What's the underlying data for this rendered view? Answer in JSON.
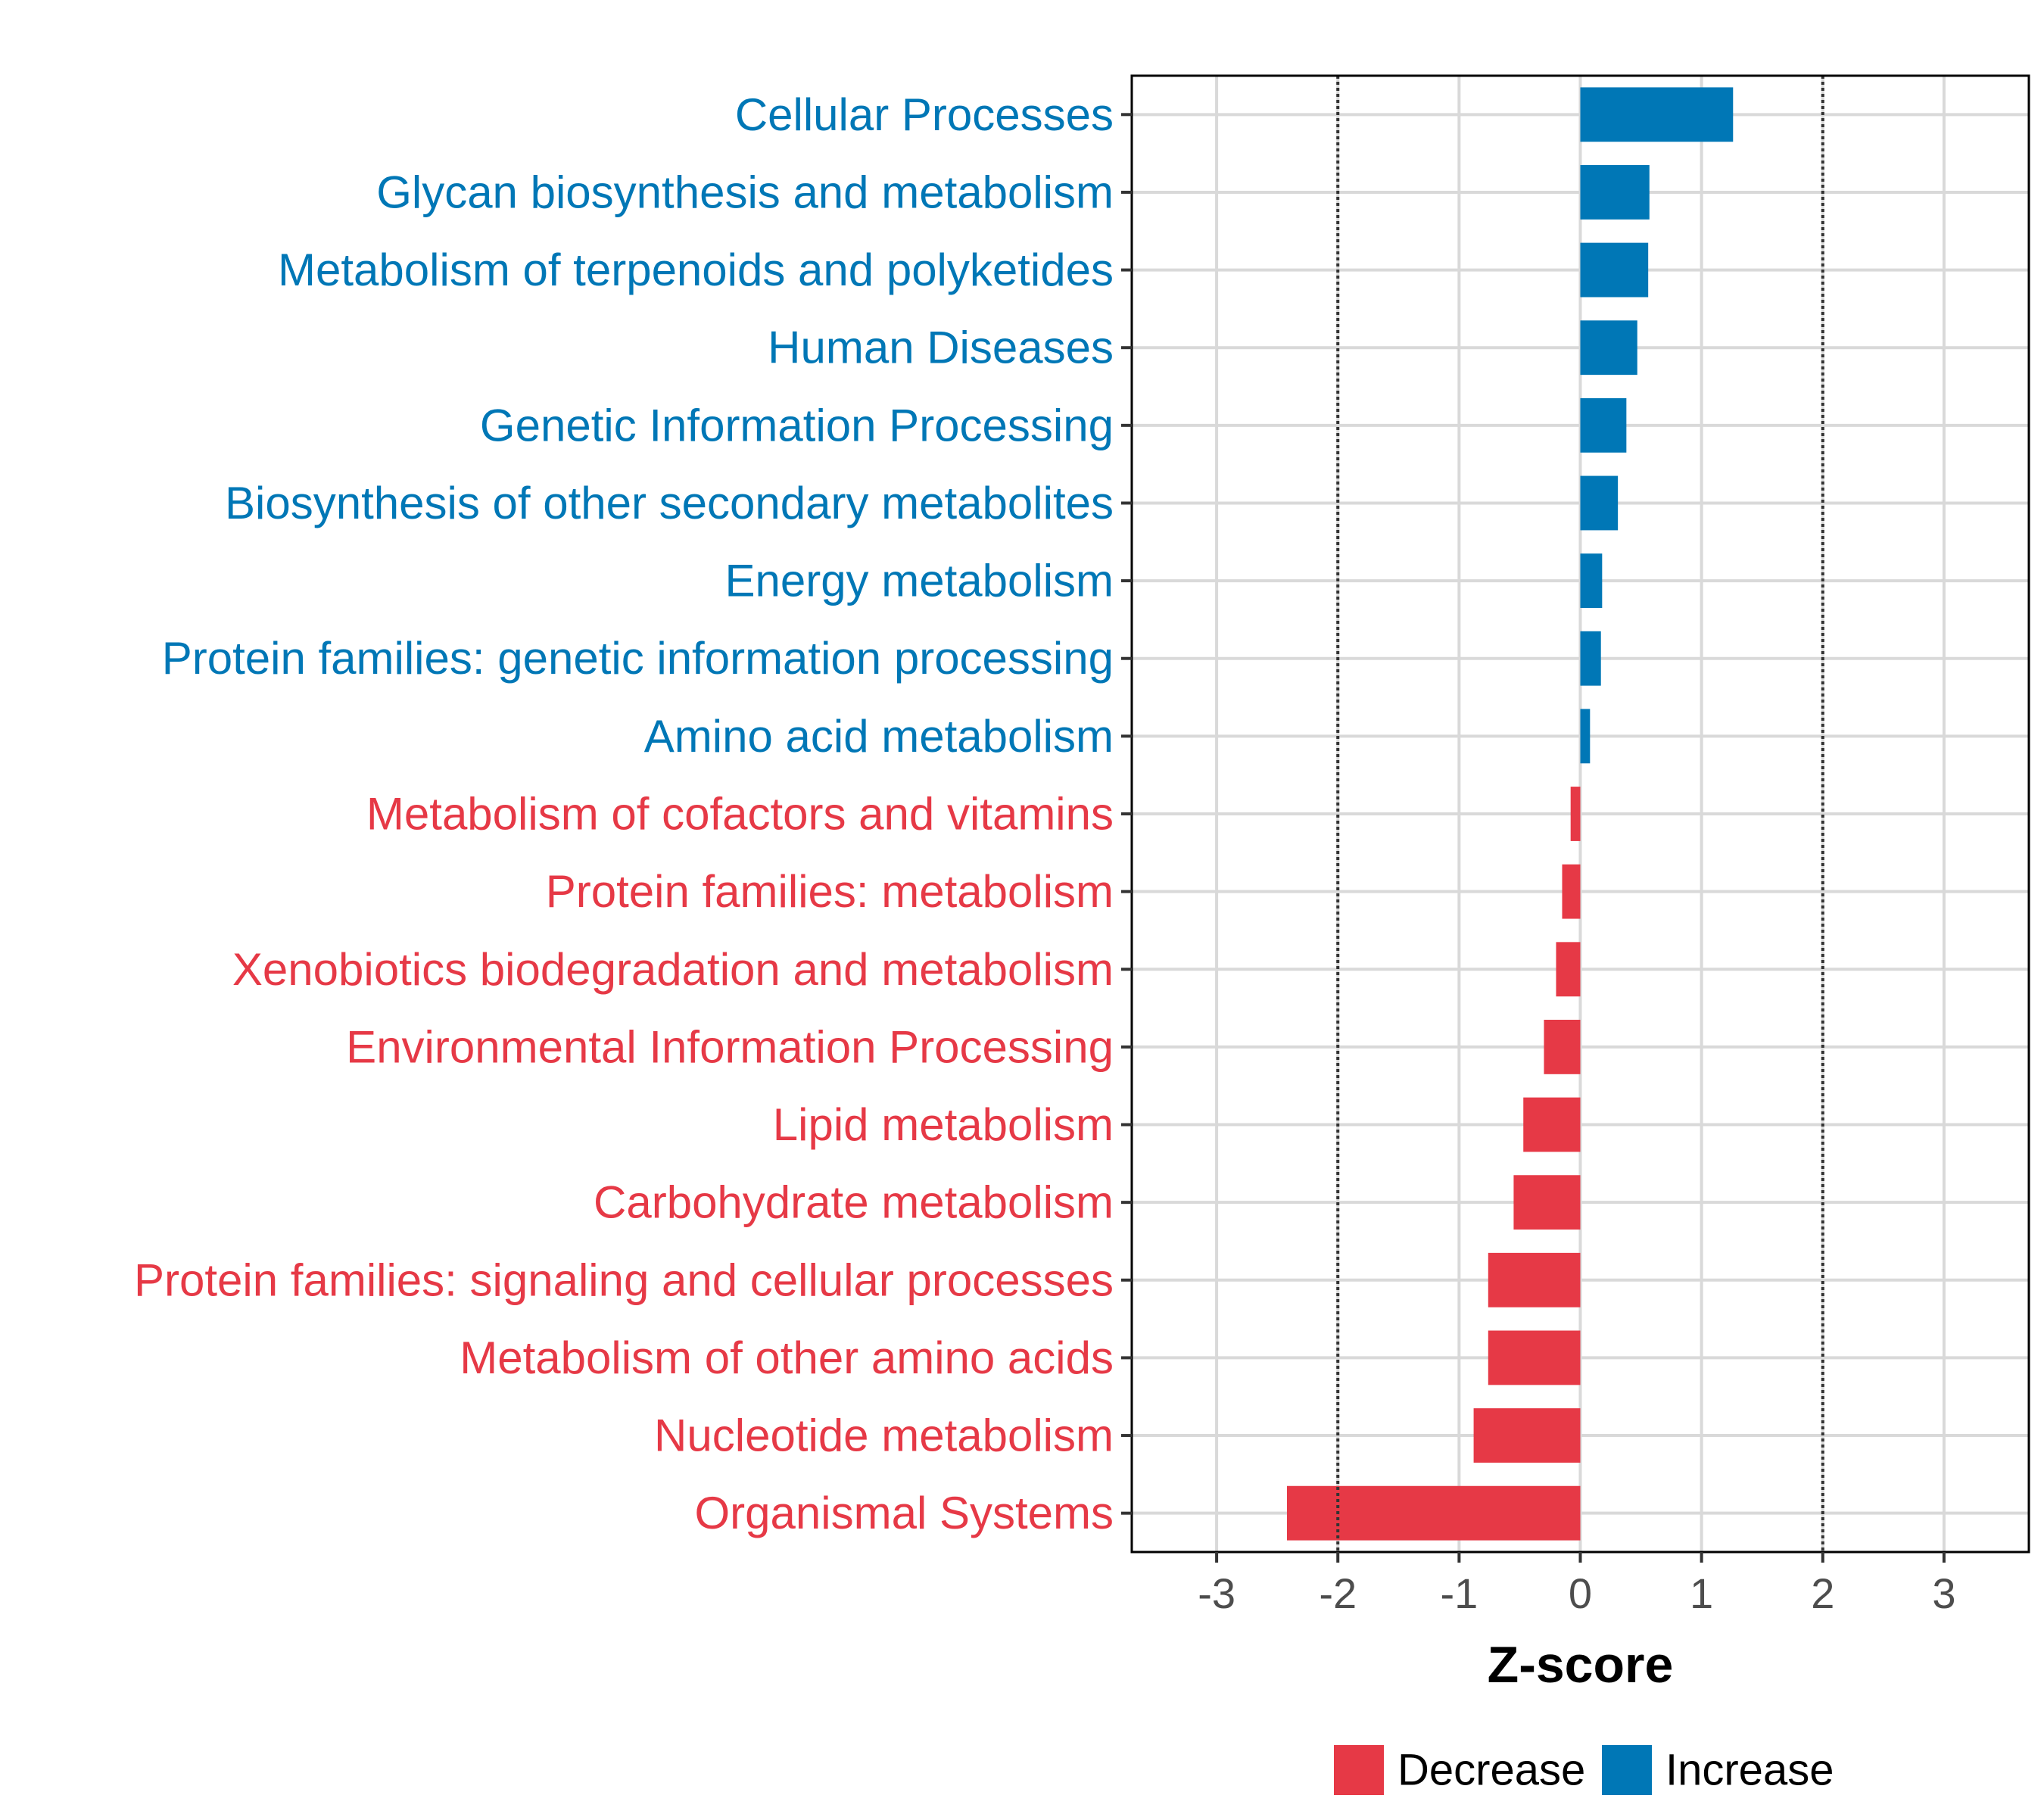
{
  "chart_data": {
    "type": "bar",
    "orientation": "horizontal",
    "xlabel": "Z-score",
    "xlim": [
      -3.7,
      3.7
    ],
    "xticks": [
      -3,
      -2,
      -1,
      0,
      1,
      2,
      3
    ],
    "xtick_labels": [
      "-3",
      "-2",
      "-1",
      "0",
      "1",
      "2",
      "3"
    ],
    "reference_lines": [
      -2,
      2
    ],
    "grid": true,
    "categories": [
      "Cellular Processes",
      "Glycan biosynthesis and metabolism",
      "Metabolism of terpenoids and polyketides",
      "Human Diseases",
      "Genetic Information Processing",
      "Biosynthesis of other secondary metabolites",
      "Energy metabolism",
      "Protein families: genetic information processing",
      "Amino acid metabolism",
      "Metabolism of cofactors and vitamins",
      "Protein families: metabolism",
      "Xenobiotics biodegradation and metabolism",
      "Environmental Information Processing",
      "Lipid metabolism",
      "Carbohydrate metabolism",
      "Protein families: signaling and cellular processes",
      "Metabolism of other amino acids",
      "Nucleotide metabolism",
      "Organismal Systems"
    ],
    "values": [
      1.26,
      0.57,
      0.56,
      0.47,
      0.38,
      0.31,
      0.18,
      0.17,
      0.08,
      -0.08,
      -0.15,
      -0.2,
      -0.3,
      -0.47,
      -0.55,
      -0.76,
      -0.76,
      -0.88,
      -2.42
    ],
    "groups": [
      "Increase",
      "Increase",
      "Increase",
      "Increase",
      "Increase",
      "Increase",
      "Increase",
      "Increase",
      "Increase",
      "Decrease",
      "Decrease",
      "Decrease",
      "Decrease",
      "Decrease",
      "Decrease",
      "Decrease",
      "Decrease",
      "Decrease",
      "Decrease"
    ],
    "legend": {
      "position": "bottom",
      "entries": [
        {
          "label": "Decrease",
          "color": "#e63946"
        },
        {
          "label": "Increase",
          "color": "#0077b6"
        }
      ]
    },
    "colors": {
      "Decrease": "#e63946",
      "Increase": "#0077b6"
    }
  }
}
